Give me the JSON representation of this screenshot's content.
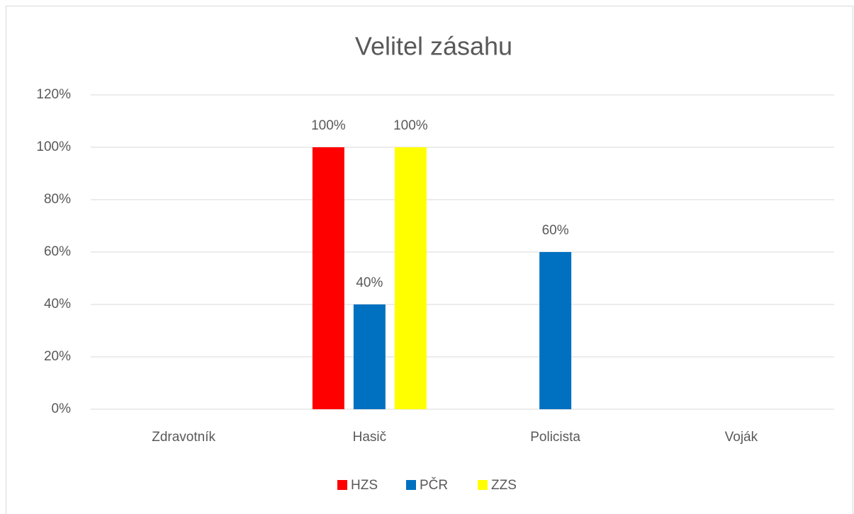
{
  "chart_data": {
    "type": "bar",
    "title": "Velitel zásahu",
    "categories": [
      "Zdravotník",
      "Hasič",
      "Policista",
      "Voják"
    ],
    "series": [
      {
        "name": "HZS",
        "color": "#ff0000",
        "values": [
          null,
          100,
          null,
          null
        ],
        "value_labels": [
          null,
          "100%",
          null,
          null
        ]
      },
      {
        "name": "PČR",
        "color": "#0070c0",
        "values": [
          null,
          40,
          60,
          null
        ],
        "value_labels": [
          null,
          "40%",
          "60%",
          null
        ]
      },
      {
        "name": "ZZS",
        "color": "#ffff00",
        "values": [
          null,
          100,
          null,
          null
        ],
        "value_labels": [
          null,
          "100%",
          null,
          null
        ]
      }
    ],
    "ylim": [
      0,
      120
    ],
    "yticks": [
      {
        "value": 0,
        "label": "0%"
      },
      {
        "value": 20,
        "label": "20%"
      },
      {
        "value": 40,
        "label": "40%"
      },
      {
        "value": 60,
        "label": "60%"
      },
      {
        "value": 80,
        "label": "80%"
      },
      {
        "value": 100,
        "label": "100%"
      },
      {
        "value": 120,
        "label": "120%"
      }
    ],
    "grid": true,
    "legend": "bottom"
  }
}
